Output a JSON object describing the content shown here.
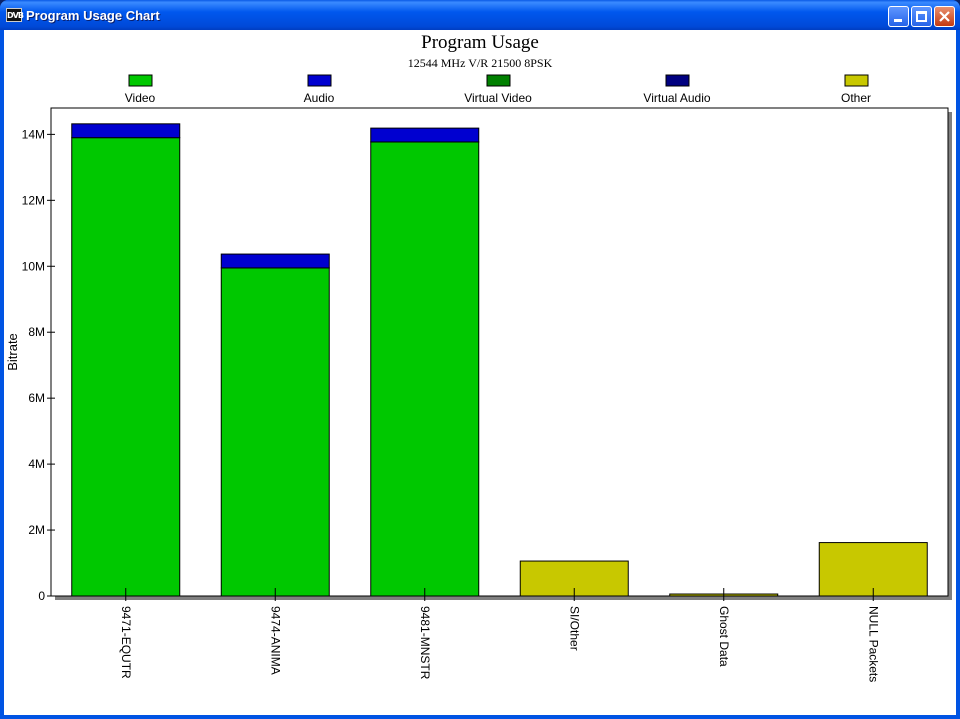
{
  "window": {
    "title": "Program Usage Chart",
    "icon_text": "DVB"
  },
  "chart_data": {
    "type": "bar",
    "title": "Program Usage",
    "subtitle": "12544 MHz V/R 21500 8PSK",
    "xlabel": "",
    "ylabel": "Bitrate",
    "ylim": [
      0,
      14800000
    ],
    "yticks": [
      0,
      2000000,
      4000000,
      6000000,
      8000000,
      10000000,
      12000000,
      14000000
    ],
    "ytick_labels": [
      "0",
      "2M",
      "4M",
      "6M",
      "8M",
      "10M",
      "12M",
      "14M"
    ],
    "grid": false,
    "legend_position": "top",
    "categories": [
      "9471-EQUTR",
      "9474-ANIMA",
      "9481-MNSTR",
      "SI/Other",
      "Ghost Data",
      "NULL Packets"
    ],
    "stacked": true,
    "series": [
      {
        "name": "Video",
        "color": "#00c800",
        "values": [
          13900000,
          9950000,
          13770000,
          0,
          0,
          0
        ]
      },
      {
        "name": "Audio",
        "color": "#0000d0",
        "values": [
          420000,
          420000,
          420000,
          0,
          0,
          0
        ]
      },
      {
        "name": "Virtual Video",
        "color": "#008000",
        "values": [
          0,
          0,
          0,
          0,
          0,
          0
        ]
      },
      {
        "name": "Virtual Audio",
        "color": "#000080",
        "values": [
          0,
          0,
          0,
          0,
          0,
          0
        ]
      },
      {
        "name": "Other",
        "color": "#c8c800",
        "values": [
          0,
          0,
          0,
          1060000,
          60000,
          1620000
        ]
      }
    ]
  }
}
